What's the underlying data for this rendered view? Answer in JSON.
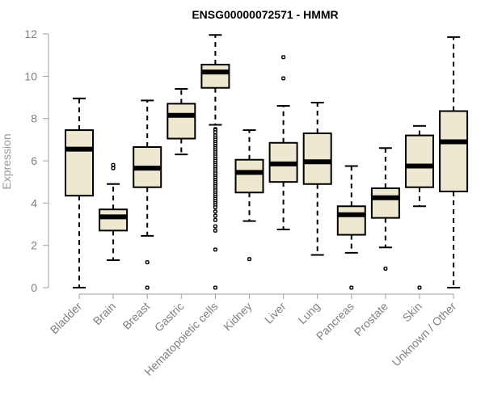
{
  "chart_data": {
    "type": "boxplot",
    "title": "ENSG00000072571 - HMMR",
    "ylabel": "Expression",
    "xlabel": "",
    "ylim": [
      0,
      12
    ],
    "yticks": [
      0,
      2,
      4,
      6,
      8,
      10,
      12
    ],
    "box_color": "#EEE8D0",
    "categories": [
      "Bladder",
      "Brain",
      "Breast",
      "Gastric",
      "Hematopoietic cells",
      "Kidney",
      "Liver",
      "Lung",
      "Pancreas",
      "Prostate",
      "Skin",
      "Unknown / Other"
    ],
    "boxes": [
      {
        "q1": 4.35,
        "median": 6.55,
        "q3": 7.45,
        "whisker_low": 0.0,
        "whisker_high": 8.95,
        "outliers": []
      },
      {
        "q1": 2.7,
        "median": 3.35,
        "q3": 3.7,
        "whisker_low": 1.3,
        "whisker_high": 4.9,
        "outliers": [
          5.65,
          5.8
        ]
      },
      {
        "q1": 4.75,
        "median": 5.65,
        "q3": 6.65,
        "whisker_low": 2.45,
        "whisker_high": 8.85,
        "outliers": [
          1.2,
          0.0
        ]
      },
      {
        "q1": 7.05,
        "median": 8.15,
        "q3": 8.7,
        "whisker_low": 6.3,
        "whisker_high": 9.4,
        "outliers": []
      },
      {
        "q1": 9.45,
        "median": 10.2,
        "q3": 10.55,
        "whisker_low": 7.7,
        "whisker_high": 11.95,
        "outliers": [
          7.5,
          7.45,
          7.35,
          7.2,
          7.1,
          7.0,
          6.9,
          6.8,
          6.7,
          6.6,
          6.5,
          6.4,
          6.3,
          6.2,
          6.1,
          6.0,
          5.9,
          5.8,
          5.7,
          5.6,
          5.5,
          5.4,
          5.3,
          5.2,
          5.1,
          5.0,
          4.9,
          4.8,
          4.7,
          4.6,
          4.5,
          4.4,
          4.3,
          4.2,
          4.1,
          4.0,
          3.9,
          3.8,
          3.6,
          3.4,
          3.2,
          2.9,
          2.7,
          1.8,
          0.0
        ]
      },
      {
        "q1": 4.5,
        "median": 5.45,
        "q3": 6.05,
        "whisker_low": 3.15,
        "whisker_high": 7.45,
        "outliers": [
          1.35
        ]
      },
      {
        "q1": 5.0,
        "median": 5.85,
        "q3": 6.85,
        "whisker_low": 2.75,
        "whisker_high": 8.6,
        "outliers": [
          9.9,
          10.9
        ]
      },
      {
        "q1": 4.9,
        "median": 5.95,
        "q3": 7.3,
        "whisker_low": 1.55,
        "whisker_high": 8.75,
        "outliers": []
      },
      {
        "q1": 2.5,
        "median": 3.45,
        "q3": 3.85,
        "whisker_low": 1.65,
        "whisker_high": 5.75,
        "outliers": [
          0.0
        ]
      },
      {
        "q1": 3.3,
        "median": 4.25,
        "q3": 4.7,
        "whisker_low": 1.9,
        "whisker_high": 6.6,
        "outliers": [
          0.9
        ]
      },
      {
        "q1": 4.75,
        "median": 5.75,
        "q3": 7.2,
        "whisker_low": 3.85,
        "whisker_high": 7.65,
        "outliers": [
          0.0
        ]
      },
      {
        "q1": 4.55,
        "median": 6.9,
        "q3": 8.35,
        "whisker_low": 0.0,
        "whisker_high": 11.85,
        "outliers": []
      }
    ]
  }
}
